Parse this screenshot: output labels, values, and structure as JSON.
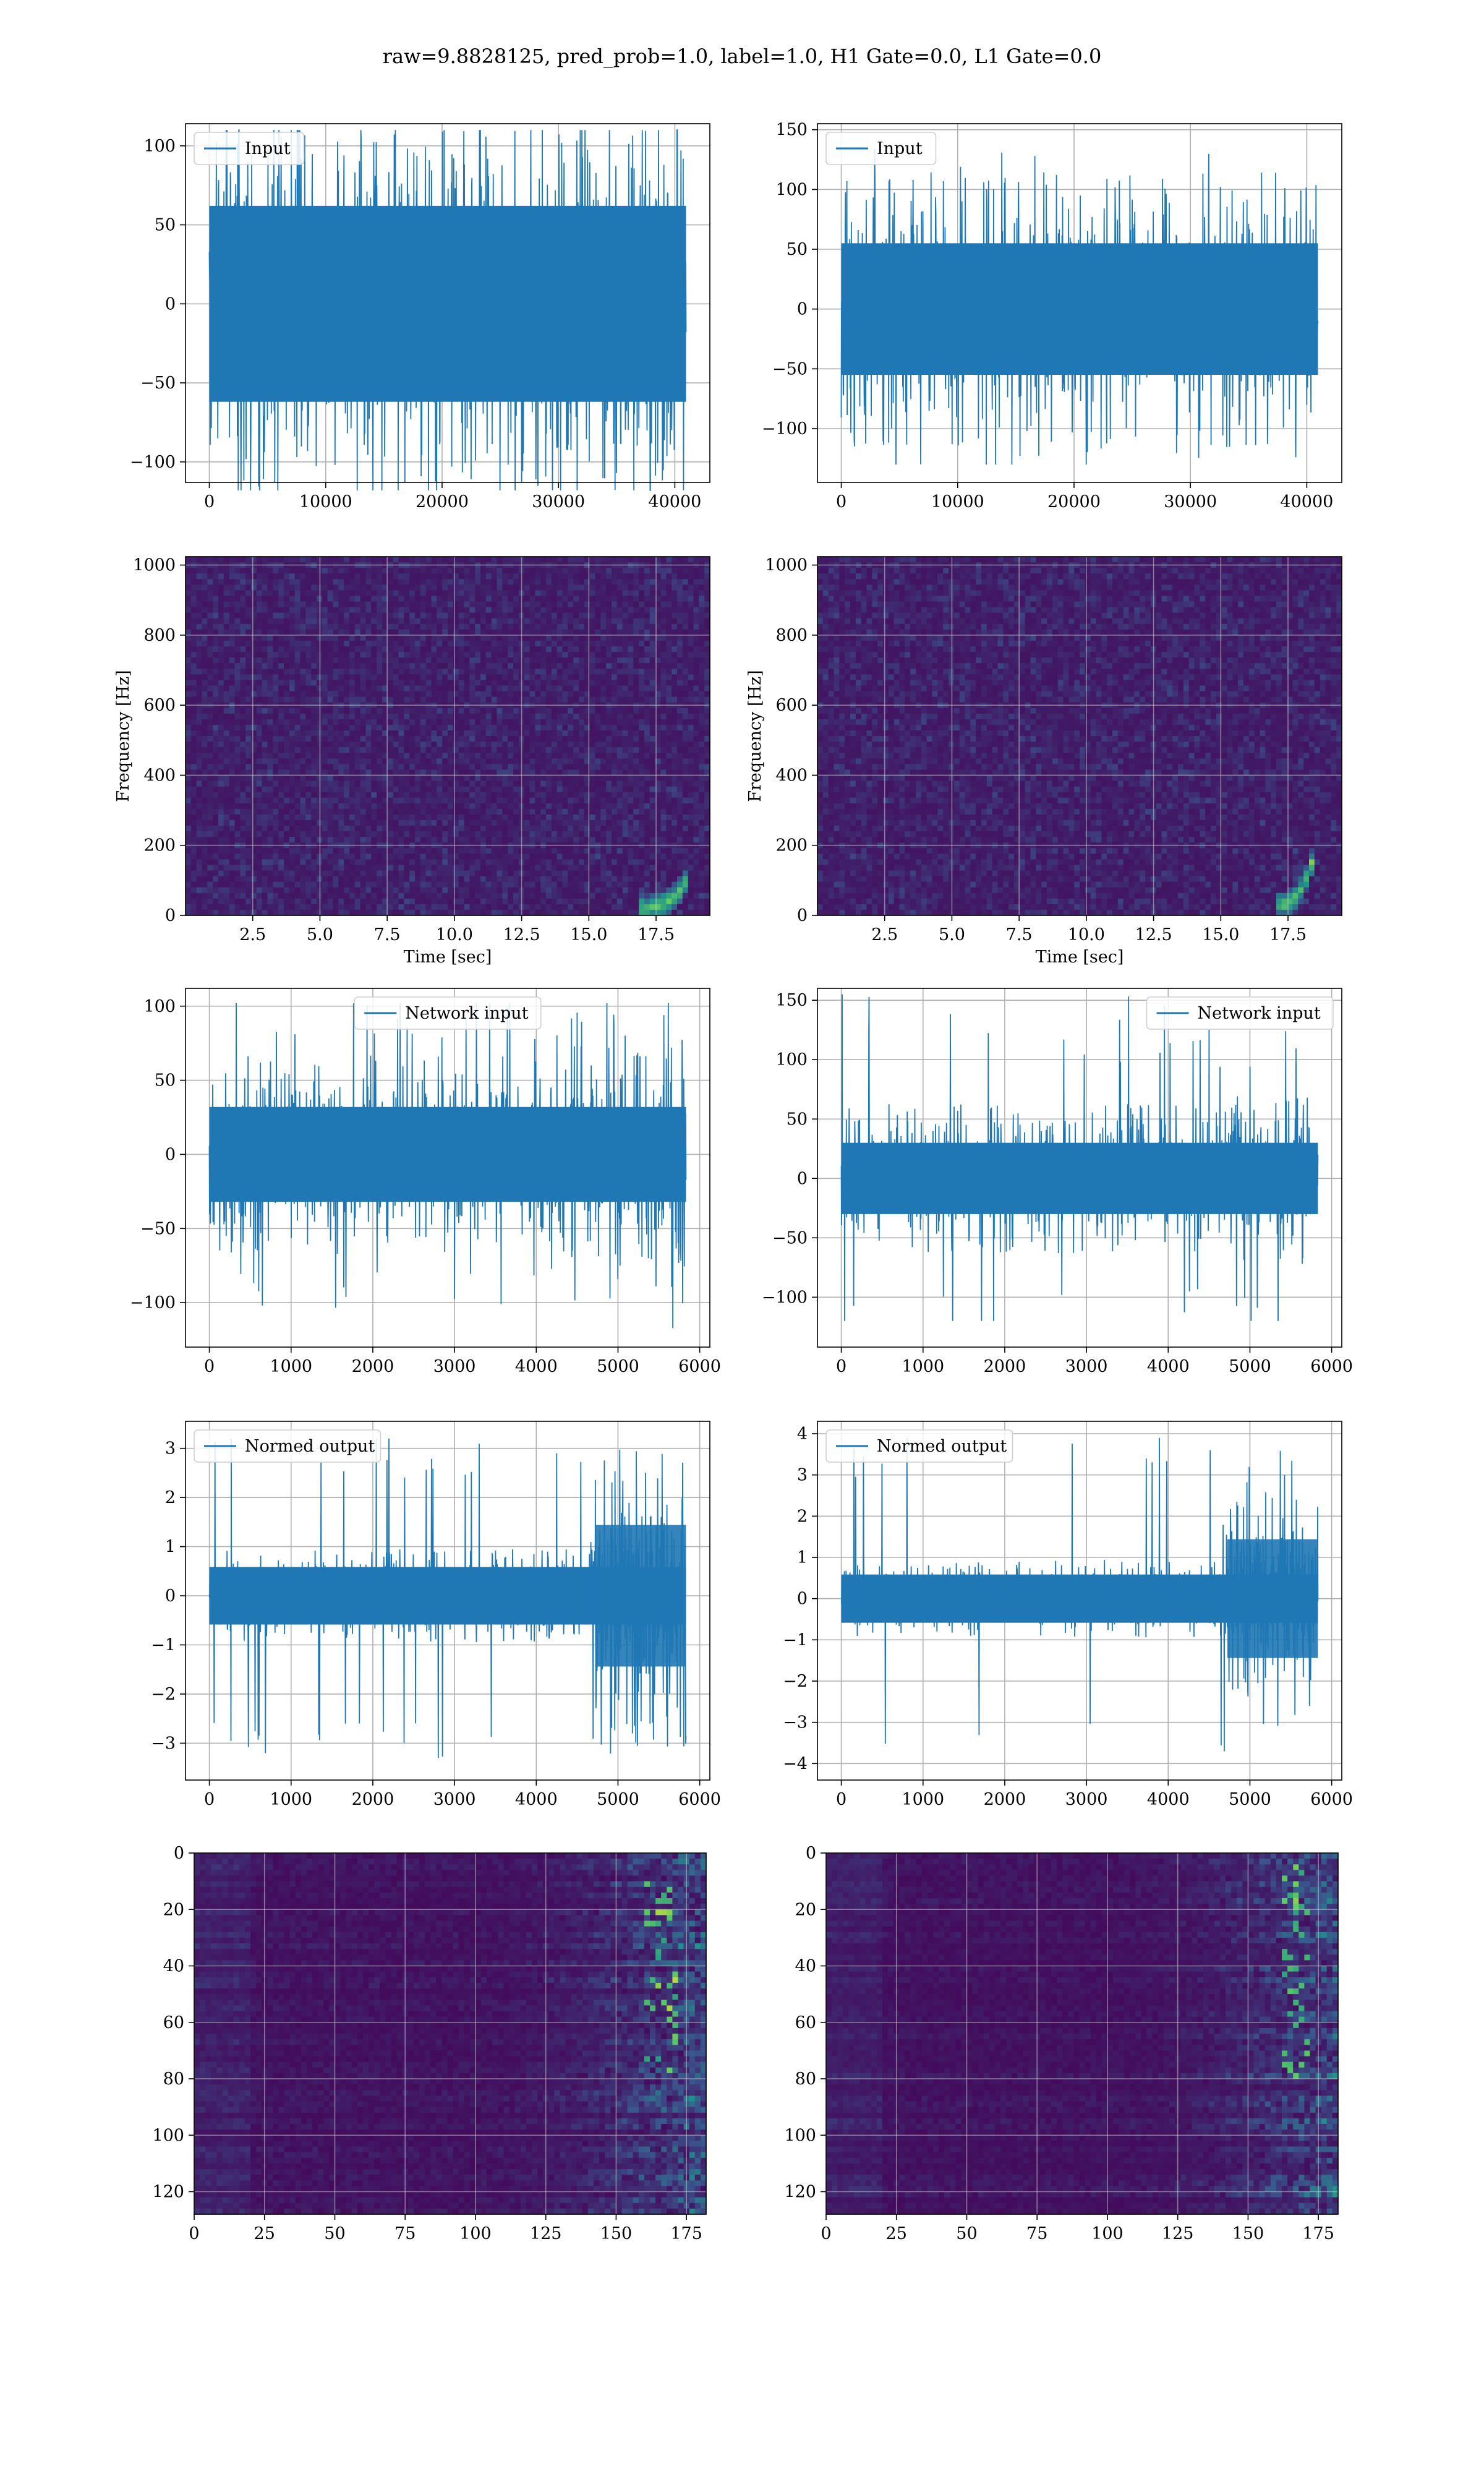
{
  "suptitle": "raw=9.8828125, pred_prob=1.0, label=1.0, H1 Gate=0.0, L1 Gate=0.0",
  "colors": {
    "line": "#1f77b4",
    "viridis_low": "#440154",
    "viridis_mid": "#21918c",
    "viridis_high": "#fde725"
  },
  "chart_data": [
    {
      "type": "line",
      "panel": "row1-left",
      "series": [
        {
          "name": "Input"
        }
      ],
      "legend": "upper-left",
      "x_range": [
        0,
        40960
      ],
      "y_envelope": [
        -118,
        110
      ],
      "core_amplitude": 62,
      "xlim": [
        -2048,
        43008
      ],
      "ylim": [
        -113,
        114
      ],
      "xticks": [
        0,
        10000,
        20000,
        30000,
        40000
      ],
      "xtick_labels": [
        "0",
        "10000",
        "20000",
        "30000",
        "40000"
      ],
      "yticks": [
        -100,
        -50,
        0,
        50,
        100
      ],
      "ytick_labels": [
        "−100",
        "−50",
        "0",
        "50",
        "100"
      ],
      "grid": true,
      "xlabel": "",
      "ylabel": ""
    },
    {
      "type": "line",
      "panel": "row1-right",
      "series": [
        {
          "name": "Input"
        }
      ],
      "legend": "upper-left",
      "x_range": [
        0,
        40960
      ],
      "y_envelope": [
        -130,
        140
      ],
      "core_amplitude": 55,
      "xlim": [
        -2048,
        43008
      ],
      "ylim": [
        -145,
        155
      ],
      "xticks": [
        0,
        10000,
        20000,
        30000,
        40000
      ],
      "xtick_labels": [
        "0",
        "10000",
        "20000",
        "30000",
        "40000"
      ],
      "yticks": [
        -100,
        -50,
        0,
        50,
        100,
        150
      ],
      "ytick_labels": [
        "−100",
        "−50",
        "0",
        "50",
        "100",
        "150"
      ],
      "grid": true,
      "xlabel": "",
      "ylabel": ""
    },
    {
      "type": "heatmap",
      "panel": "row2-left",
      "colormap": "viridis",
      "xlim": [
        0,
        19.5
      ],
      "ylim": [
        0,
        1024
      ],
      "xticks": [
        2.5,
        5.0,
        7.5,
        10.0,
        12.5,
        15.0,
        17.5
      ],
      "xtick_labels": [
        "2.5",
        "5.0",
        "7.5",
        "10.0",
        "12.5",
        "15.0",
        "17.5"
      ],
      "yticks": [
        0,
        200,
        400,
        600,
        800,
        1000
      ],
      "ytick_labels": [
        "0",
        "200",
        "400",
        "600",
        "800",
        "1000"
      ],
      "xlabel": "Time [sec]",
      "ylabel": "Frequency [Hz]",
      "grid": true,
      "feature": {
        "description": "chirp",
        "time": [
          16.8,
          18.7
        ],
        "freq": [
          20,
          110
        ]
      }
    },
    {
      "type": "heatmap",
      "panel": "row2-right",
      "colormap": "viridis",
      "xlim": [
        0,
        19.5
      ],
      "ylim": [
        0,
        1024
      ],
      "xticks": [
        2.5,
        5.0,
        7.5,
        10.0,
        12.5,
        15.0,
        17.5
      ],
      "xtick_labels": [
        "2.5",
        "5.0",
        "7.5",
        "10.0",
        "12.5",
        "15.0",
        "17.5"
      ],
      "yticks": [
        0,
        200,
        400,
        600,
        800,
        1000
      ],
      "ytick_labels": [
        "0",
        "200",
        "400",
        "600",
        "800",
        "1000"
      ],
      "xlabel": "Time [sec]",
      "ylabel": "Frequency [Hz]",
      "grid": true,
      "feature": {
        "description": "chirp",
        "time": [
          17.0,
          18.5
        ],
        "freq": [
          30,
          180
        ]
      }
    },
    {
      "type": "line",
      "panel": "row3-left",
      "series": [
        {
          "name": "Network input"
        }
      ],
      "legend": "upper-center",
      "x_range": [
        0,
        5832
      ],
      "y_envelope": [
        -118,
        102
      ],
      "core_amplitude": 32,
      "xlim": [
        -292,
        6124
      ],
      "ylim": [
        -130,
        112
      ],
      "xticks": [
        0,
        1000,
        2000,
        3000,
        4000,
        5000,
        6000
      ],
      "xtick_labels": [
        "0",
        "1000",
        "2000",
        "3000",
        "4000",
        "5000",
        "6000"
      ],
      "yticks": [
        -100,
        -50,
        0,
        50,
        100
      ],
      "ytick_labels": [
        "−100",
        "−50",
        "0",
        "50",
        "100"
      ],
      "grid": true,
      "xlabel": "",
      "ylabel": ""
    },
    {
      "type": "line",
      "panel": "row3-right",
      "series": [
        {
          "name": "Network input"
        }
      ],
      "legend": "upper-right",
      "x_range": [
        0,
        5832
      ],
      "y_envelope": [
        -120,
        155
      ],
      "core_amplitude": 30,
      "xlim": [
        -292,
        6124
      ],
      "ylim": [
        -142,
        160
      ],
      "xticks": [
        0,
        1000,
        2000,
        3000,
        4000,
        5000,
        6000
      ],
      "xtick_labels": [
        "0",
        "1000",
        "2000",
        "3000",
        "4000",
        "5000",
        "6000"
      ],
      "yticks": [
        -100,
        -50,
        0,
        50,
        100,
        150
      ],
      "ytick_labels": [
        "−100",
        "−50",
        "0",
        "50",
        "100",
        "150"
      ],
      "grid": true,
      "xlabel": "",
      "ylabel": ""
    },
    {
      "type": "line",
      "panel": "row4-left",
      "series": [
        {
          "name": "Normed output"
        }
      ],
      "legend": "upper-left",
      "x_range": [
        0,
        5832
      ],
      "y_envelope": [
        -3.4,
        3.2
      ],
      "core_amplitude": 0.45,
      "xlim": [
        -292,
        6124
      ],
      "ylim": [
        -3.75,
        3.55
      ],
      "xticks": [
        0,
        1000,
        2000,
        3000,
        4000,
        5000,
        6000
      ],
      "xtick_labels": [
        "0",
        "1000",
        "2000",
        "3000",
        "4000",
        "5000",
        "6000"
      ],
      "yticks": [
        -3,
        -2,
        -1,
        0,
        1,
        2,
        3
      ],
      "ytick_labels": [
        "−3",
        "−2",
        "−1",
        "0",
        "1",
        "2",
        "3"
      ],
      "grid": true,
      "xlabel": "",
      "ylabel": ""
    },
    {
      "type": "line",
      "panel": "row4-right",
      "series": [
        {
          "name": "Normed output"
        }
      ],
      "legend": "upper-left",
      "x_range": [
        0,
        5832
      ],
      "y_envelope": [
        -4.0,
        3.9
      ],
      "core_amplitude": 0.45,
      "xlim": [
        -292,
        6124
      ],
      "ylim": [
        -4.4,
        4.3
      ],
      "xticks": [
        0,
        1000,
        2000,
        3000,
        4000,
        5000,
        6000
      ],
      "xtick_labels": [
        "0",
        "1000",
        "2000",
        "3000",
        "4000",
        "5000",
        "6000"
      ],
      "yticks": [
        -4,
        -3,
        -2,
        -1,
        0,
        1,
        2,
        3,
        4
      ],
      "ytick_labels": [
        "−4",
        "−3",
        "−2",
        "−1",
        "0",
        "1",
        "2",
        "3",
        "4"
      ],
      "grid": true,
      "xlabel": "",
      "ylabel": ""
    },
    {
      "type": "heatmap",
      "panel": "row5-left",
      "colormap": "viridis",
      "xlim": [
        0,
        182
      ],
      "ylim": [
        128,
        0
      ],
      "xticks": [
        0,
        25,
        50,
        75,
        100,
        125,
        150,
        175
      ],
      "xtick_labels": [
        "0",
        "25",
        "50",
        "75",
        "100",
        "125",
        "150",
        "175"
      ],
      "yticks": [
        0,
        20,
        40,
        60,
        80,
        100,
        120
      ],
      "ytick_labels": [
        "0",
        "20",
        "40",
        "60",
        "80",
        "100",
        "120"
      ],
      "xlabel": "",
      "ylabel": "",
      "grid": true,
      "feature": {
        "description": "activity increases to the right",
        "onset_x": 100,
        "hot_x": [
          160,
          172
        ],
        "hot_y": [
          10,
          80
        ]
      }
    },
    {
      "type": "heatmap",
      "panel": "row5-right",
      "colormap": "viridis",
      "xlim": [
        0,
        182
      ],
      "ylim": [
        128,
        0
      ],
      "xticks": [
        0,
        25,
        50,
        75,
        100,
        125,
        150,
        175
      ],
      "xtick_labels": [
        "0",
        "25",
        "50",
        "75",
        "100",
        "125",
        "150",
        "175"
      ],
      "yticks": [
        0,
        20,
        40,
        60,
        80,
        100,
        120
      ],
      "ytick_labels": [
        "0",
        "20",
        "40",
        "60",
        "80",
        "100",
        "120"
      ],
      "xlabel": "",
      "ylabel": "",
      "grid": true,
      "feature": {
        "description": "activity increases to the right",
        "onset_x": 100,
        "hot_x": [
          162,
          172
        ],
        "hot_y": [
          5,
          80
        ]
      }
    }
  ]
}
